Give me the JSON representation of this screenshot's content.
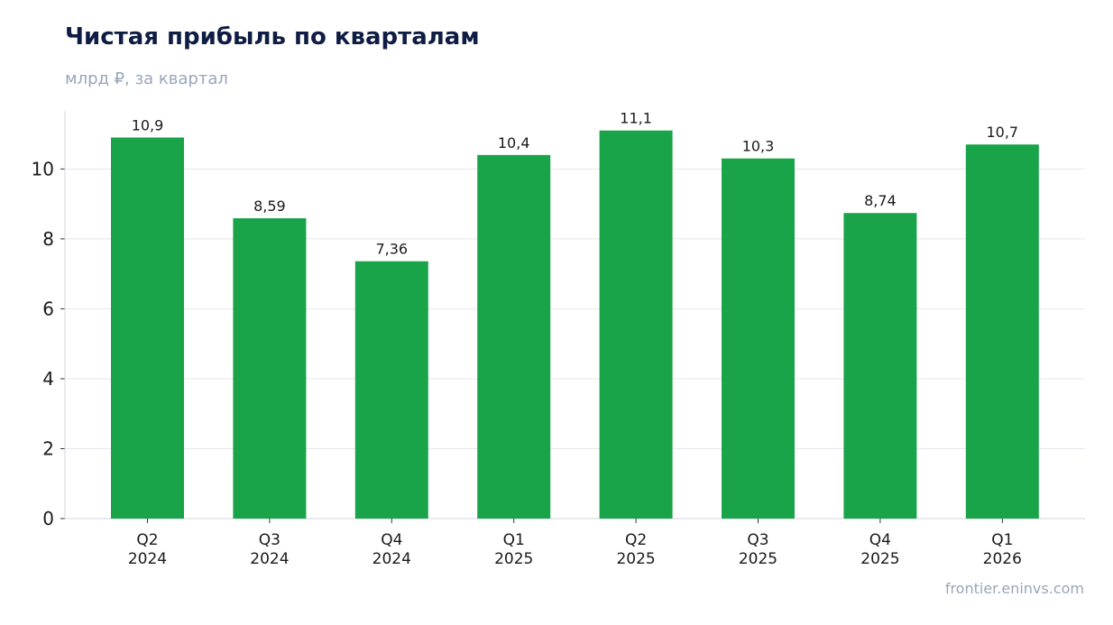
{
  "header": {
    "title": "Чистая прибыль по кварталам",
    "subtitle": "млрд ₽, за квартал"
  },
  "footer": {
    "source": "frontier.eninvs.com"
  },
  "colors": {
    "bar": "#19a44a",
    "title": "#0f1d44",
    "muted": "#98a6bb",
    "grid": "#e3e8ef",
    "axis": "#d0d6df"
  },
  "chart_data": {
    "type": "bar",
    "title": "Чистая прибыль по кварталам",
    "subtitle": "млрд ₽, за квартал",
    "categories": [
      [
        "Q2",
        "2024"
      ],
      [
        "Q3",
        "2024"
      ],
      [
        "Q4",
        "2024"
      ],
      [
        "Q1",
        "2025"
      ],
      [
        "Q2",
        "2025"
      ],
      [
        "Q3",
        "2025"
      ],
      [
        "Q4",
        "2025"
      ],
      [
        "Q1",
        "2026"
      ]
    ],
    "values": [
      10.9,
      8.59,
      7.36,
      10.4,
      11.1,
      10.3,
      8.74,
      10.7
    ],
    "value_labels": [
      "10,9",
      "8,59",
      "7,36",
      "10,4",
      "11,1",
      "10,3",
      "8,74",
      "10,7"
    ],
    "yticks": [
      0,
      2,
      4,
      6,
      8,
      10
    ],
    "ylim": [
      0,
      11.66
    ],
    "grid": true,
    "legend": "none"
  }
}
